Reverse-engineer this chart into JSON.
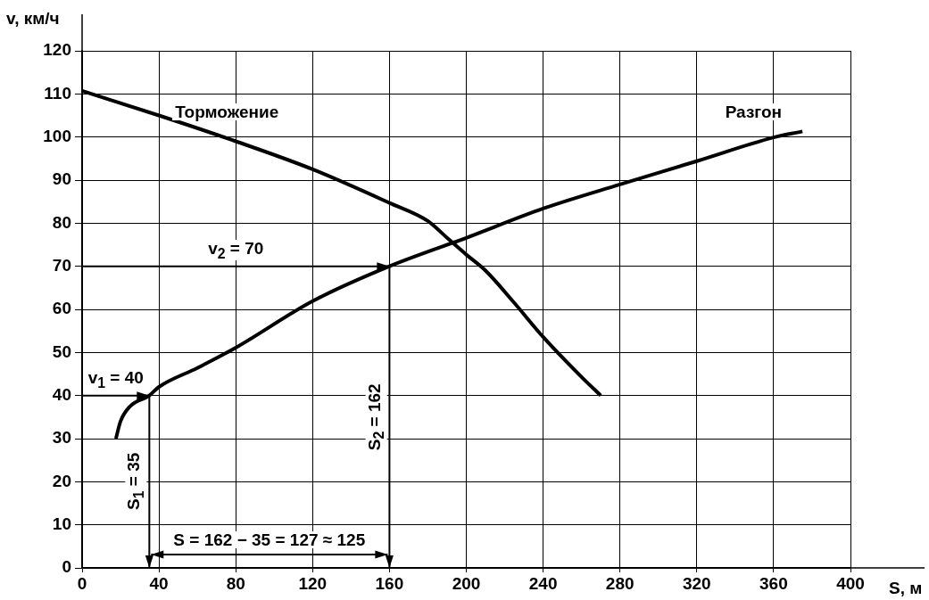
{
  "chart_data": {
    "type": "line",
    "xlabel": "S, м",
    "ylabel": "v, км/ч",
    "xlim": [
      0,
      400
    ],
    "xticks": [
      0,
      40,
      80,
      120,
      160,
      200,
      240,
      280,
      320,
      360,
      400
    ],
    "ylim": [
      0,
      120
    ],
    "yticks": [
      0,
      10,
      20,
      30,
      40,
      50,
      60,
      70,
      80,
      90,
      100,
      110,
      120
    ],
    "grid": true,
    "legend": false,
    "marker": "none",
    "line_style": "solid",
    "series": [
      {
        "name": "Торможение",
        "color": "#000000",
        "x": [
          0,
          40,
          80,
          120,
          160,
          180,
          190,
          200,
          210,
          225,
          240,
          260,
          270
        ],
        "values": [
          110.7,
          105,
          99,
          92.5,
          84.7,
          80.5,
          76.6,
          72.7,
          69,
          61.5,
          53.6,
          44.3,
          40
        ]
      },
      {
        "name": "Разгон",
        "color": "#000000",
        "x": [
          17.6,
          20,
          25,
          35,
          40,
          60,
          80,
          120,
          160,
          200,
          240,
          280,
          320,
          360,
          375
        ],
        "values": [
          30,
          34,
          37.5,
          40,
          42,
          46.4,
          51.1,
          61.9,
          70,
          76.6,
          83.4,
          89,
          94.4,
          99.9,
          101.3
        ]
      }
    ],
    "annotations": [
      "v$_{2}$ = 70",
      "S$_{2}$ = 162",
      {
        "text": "v$_{1}$ = 40",
        "x": 35,
        "y": 40
      },
      "S$_{1}$ = 35",
      "S = 162 − 35 = 127 ≈ 125"
    ]
  }
}
